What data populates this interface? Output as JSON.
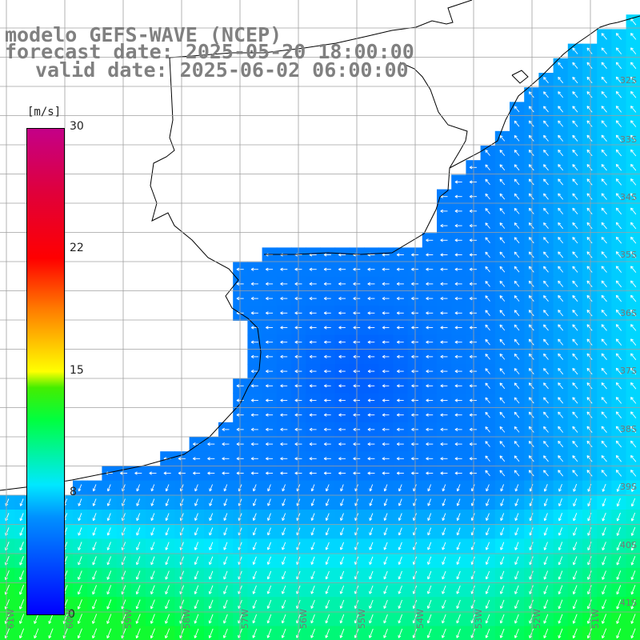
{
  "title": {
    "model": "modelo GEFS-WAVE (NCEP)",
    "forecast": "forecast date: 2025-05-20 18:00:00",
    "valid": "valid date: 2025-06-02 06:00:00"
  },
  "colorbar": {
    "unit": "[m/s]",
    "min": 0,
    "max": 30,
    "ticks": [
      "30",
      "22",
      "15",
      "8",
      "0"
    ]
  },
  "lat_labels": [
    "32S",
    "33S",
    "34S",
    "35S",
    "36S",
    "37S",
    "38S",
    "39S",
    "40S",
    "41S"
  ],
  "lon_labels": [
    "61W",
    "60W",
    "59W",
    "58W",
    "57W",
    "56W",
    "55W",
    "54W",
    "53W",
    "52W",
    "51W"
  ],
  "colors": {
    "land": "#ffffff",
    "grid": "#a0a0a0",
    "coastline": "#000000",
    "arrows": "#ffffff",
    "title": "#808080"
  }
}
